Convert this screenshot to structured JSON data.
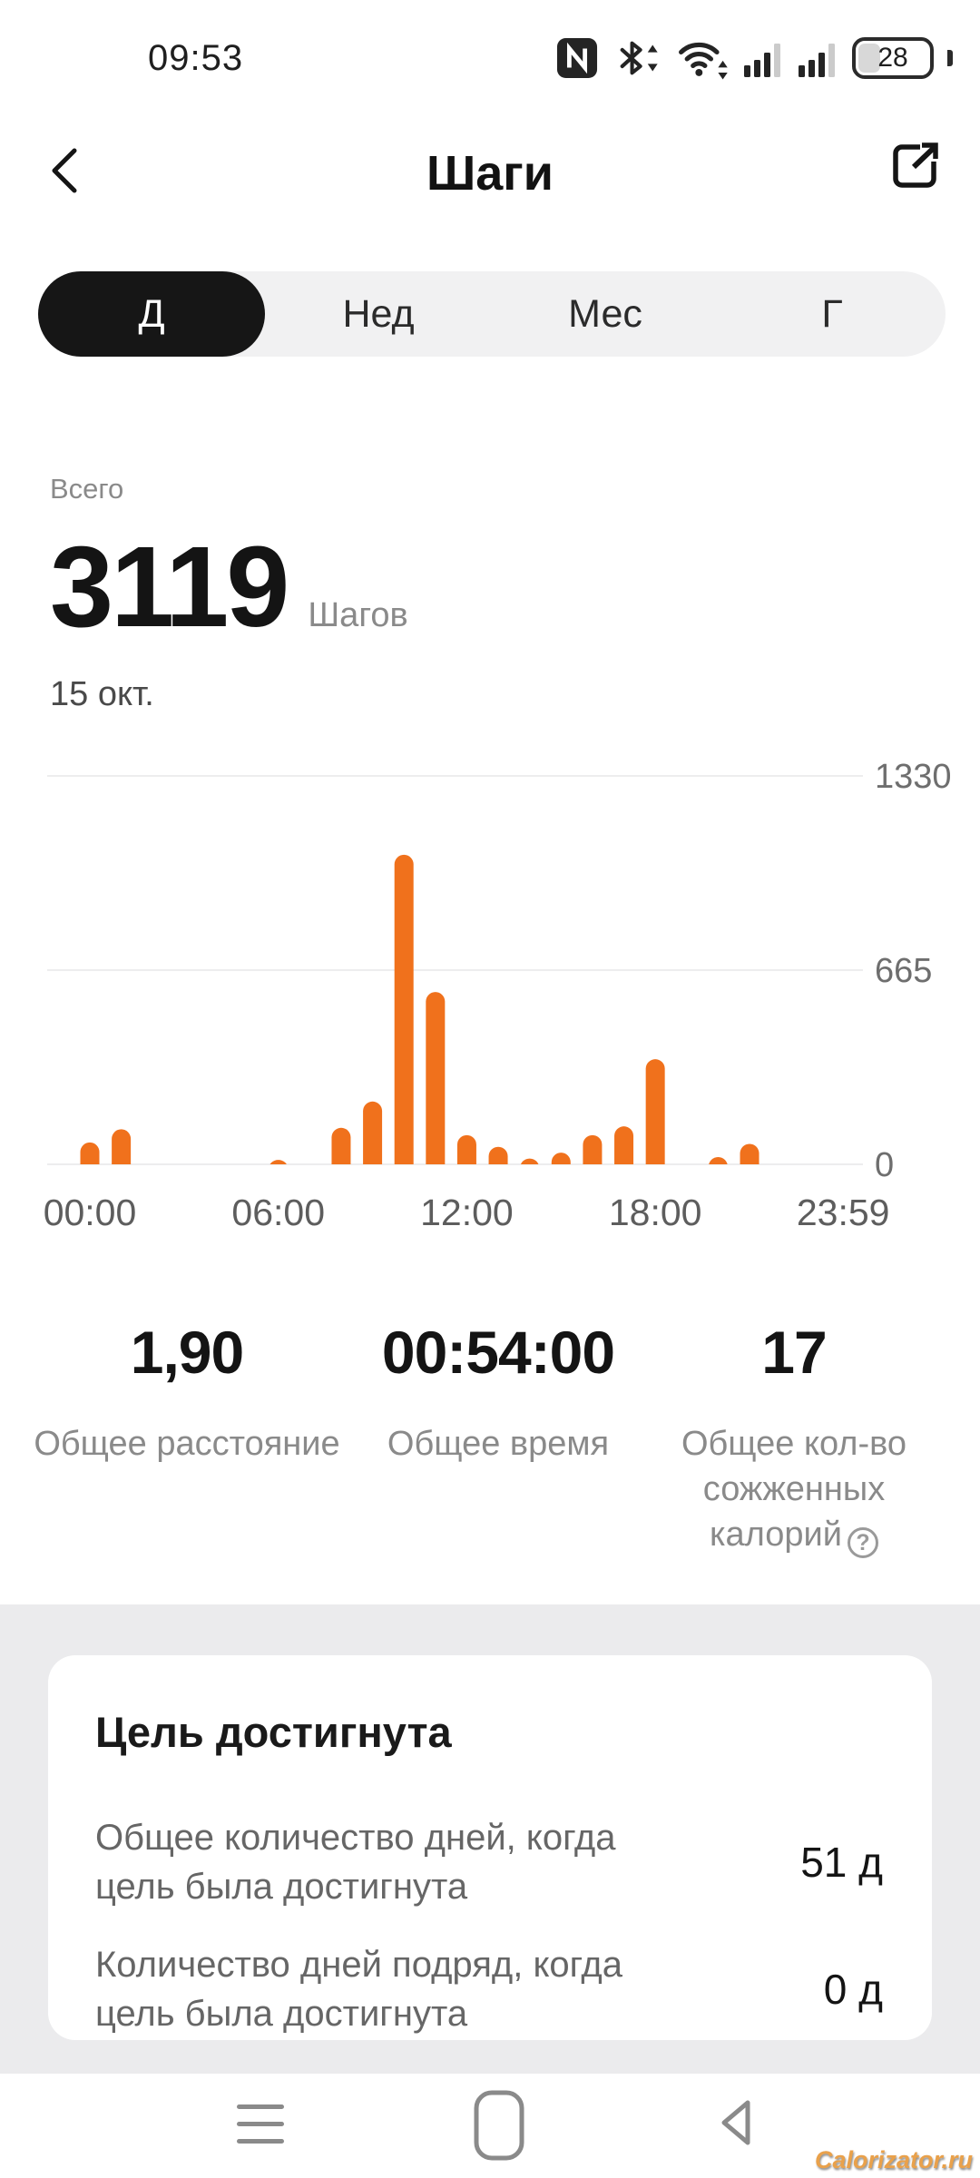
{
  "status_bar": {
    "time": "09:53",
    "battery_percent": "28",
    "icons": [
      "nfc-icon",
      "bluetooth-icon",
      "wifi-icon",
      "signal-bars-icon",
      "signal-bars-icon",
      "battery-icon"
    ]
  },
  "header": {
    "title": "Шаги",
    "back_icon": "chevron-left-icon",
    "share_icon": "share-icon"
  },
  "tabs": {
    "items": [
      {
        "label": "Д",
        "selected": true
      },
      {
        "label": "Нед",
        "selected": false
      },
      {
        "label": "Мес",
        "selected": false
      },
      {
        "label": "Г",
        "selected": false
      }
    ]
  },
  "summary": {
    "total_label": "Всего",
    "value": "3119",
    "unit": "Шагов",
    "date": "15 окт."
  },
  "chart_data": {
    "type": "bar",
    "title": "",
    "xlabel": "",
    "ylabel": "",
    "bar_color": "#F0711C",
    "grid": "horizontal",
    "legend": "none",
    "ylim": [
      0,
      1330
    ],
    "xlim_hours": [
      0,
      24
    ],
    "series_hours": [
      0,
      1,
      6,
      8,
      9,
      10,
      11,
      12,
      13,
      14,
      15,
      16,
      17,
      18,
      20,
      21
    ],
    "values": [
      75,
      120,
      15,
      125,
      215,
      1060,
      590,
      100,
      60,
      20,
      40,
      100,
      130,
      360,
      25,
      70
    ],
    "xticks": [
      {
        "hour": 0,
        "label": "00:00"
      },
      {
        "hour": 6,
        "label": "06:00"
      },
      {
        "hour": 12,
        "label": "12:00"
      },
      {
        "hour": 18,
        "label": "18:00"
      },
      {
        "hour": 23.98,
        "label": "23:59"
      }
    ],
    "yticks": [
      {
        "value": 0,
        "label": "0"
      },
      {
        "value": 665,
        "label": "665"
      },
      {
        "value": 1330,
        "label": "1330"
      }
    ]
  },
  "stats": {
    "items": [
      {
        "value": "1,90",
        "label": "Общее расстояние"
      },
      {
        "value": "00:54:00",
        "label": "Общее время"
      },
      {
        "value": "17",
        "label": "Общее кол-во сожженных калорий",
        "help_icon": "question-circle-icon"
      }
    ]
  },
  "goal": {
    "title": "Цель достигнута",
    "rows": [
      {
        "label": "Общее количество дней, когда цель была достигнута",
        "value": "51 д"
      },
      {
        "label": "Количество дней подряд, когда цель была достигнута",
        "value": "0 д"
      }
    ]
  },
  "nav_bar": {
    "icons": [
      "menu-icon",
      "home-icon",
      "back-icon"
    ]
  },
  "watermark": {
    "text": "Calorizator.ru"
  },
  "colors": {
    "accent": "#F0711C",
    "tab_active_bg": "#161616",
    "tab_bar_bg": "#F1F1F2",
    "section_bg": "#EBEBED",
    "text_primary": "#141414",
    "text_secondary": "#8A8A8A"
  }
}
